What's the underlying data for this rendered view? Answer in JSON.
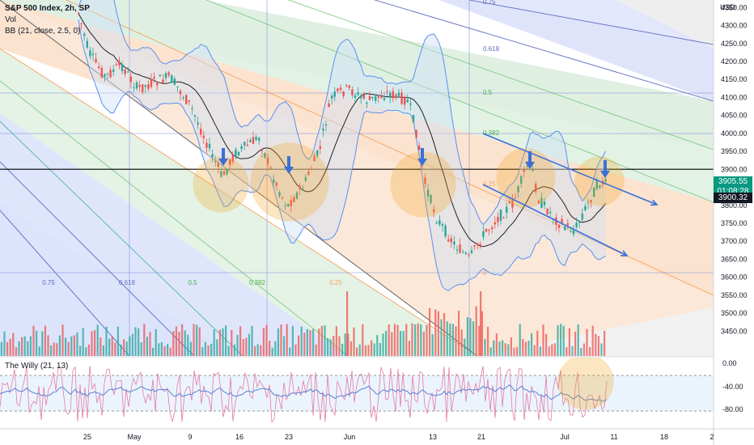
{
  "legend": {
    "title": "S&P 500 Index, 2h, SP",
    "volume": "Vol",
    "bollinger": "BB (21, close, 2.5, 0)",
    "oscillator": "The Willy (21, 13)"
  },
  "currency": "USD",
  "price_tags": {
    "last": "3905.55",
    "countdown": "01:08:28",
    "level": "3900.32"
  },
  "colors": {
    "up": "#26a69a",
    "down": "#ef5350",
    "fan_orange": "#f7a35c",
    "fan_green": "#81c784",
    "fan_teal": "#4db6ac",
    "fan_blue": "#5c6bc0",
    "bb_line": "#5b8ff0",
    "ma_line": "#222222",
    "trend_arrow": "#3a6fd8",
    "highlight": "#f5a623",
    "price_tag_bg": "#089981"
  },
  "chart_data": {
    "type": "candlestick",
    "y_axis": {
      "min": 3400,
      "max": 4400,
      "ticks": [
        4350,
        4300,
        4250,
        4200,
        4150,
        4100,
        4050,
        4000,
        3950,
        3900,
        3850,
        3800,
        3750,
        3700,
        3650,
        3600,
        3550,
        3500,
        3450
      ]
    },
    "x_axis": {
      "ticks": [
        "25",
        "May",
        "9",
        "16",
        "23",
        "Jun",
        "13",
        "21",
        "Jul",
        "11",
        "18",
        "2"
      ]
    },
    "fib_fan_levels_upper": [
      "0.75",
      "0.618",
      "0.5",
      "0.382",
      "0.25",
      "0"
    ],
    "fib_fan_levels_lower": [
      "0.75",
      "0.618",
      "0.5",
      "0.382",
      "0.25",
      "0"
    ],
    "horizontal_level": 3900.32,
    "price_path": [
      [
        "Apr 20",
        4390
      ],
      [
        "Apr 22",
        4300
      ],
      [
        "Apr 25",
        4250
      ],
      [
        "Apr 27",
        4200
      ],
      [
        "Apr 29",
        4270
      ],
      [
        "May 2",
        4150
      ],
      [
        "May 4",
        4250
      ],
      [
        "May 6",
        4120
      ],
      [
        "May 9",
        4020
      ],
      [
        "May 11",
        3960
      ],
      [
        "May 12",
        3900
      ],
      [
        "May 14",
        3950
      ],
      [
        "May 16",
        4010
      ],
      [
        "May 18",
        4030
      ],
      [
        "May 20",
        3880
      ],
      [
        "May 22",
        3840
      ],
      [
        "May 24",
        3920
      ],
      [
        "May 26",
        3980
      ],
      [
        "May 29",
        4060
      ],
      [
        "Jun 1",
        4140
      ],
      [
        "Jun 3",
        4160
      ],
      [
        "Jun 6",
        4130
      ],
      [
        "Jun 8",
        4150
      ],
      [
        "Jun 9",
        4030
      ],
      [
        "Jun 10",
        3920
      ],
      [
        "Jun 13",
        3780
      ],
      [
        "Jun 15",
        3760
      ],
      [
        "Jun 17",
        3690
      ],
      [
        "Jun 20",
        3670
      ],
      [
        "Jun 22",
        3760
      ],
      [
        "Jun 24",
        3810
      ],
      [
        "Jun 27",
        3950
      ],
      [
        "Jun 29",
        3870
      ],
      [
        "Jul 1",
        3800
      ],
      [
        "Jul 5",
        3760
      ],
      [
        "Jul 6",
        3830
      ],
      [
        "Jul 7",
        3880
      ],
      [
        "Jul 8",
        3905
      ]
    ],
    "oscillator": {
      "name": "The Willy (21, 13)",
      "ylim": [
        -100,
        0
      ],
      "ticks": [
        "0.00",
        "-40.00",
        "-80.00"
      ]
    },
    "volume": true
  }
}
